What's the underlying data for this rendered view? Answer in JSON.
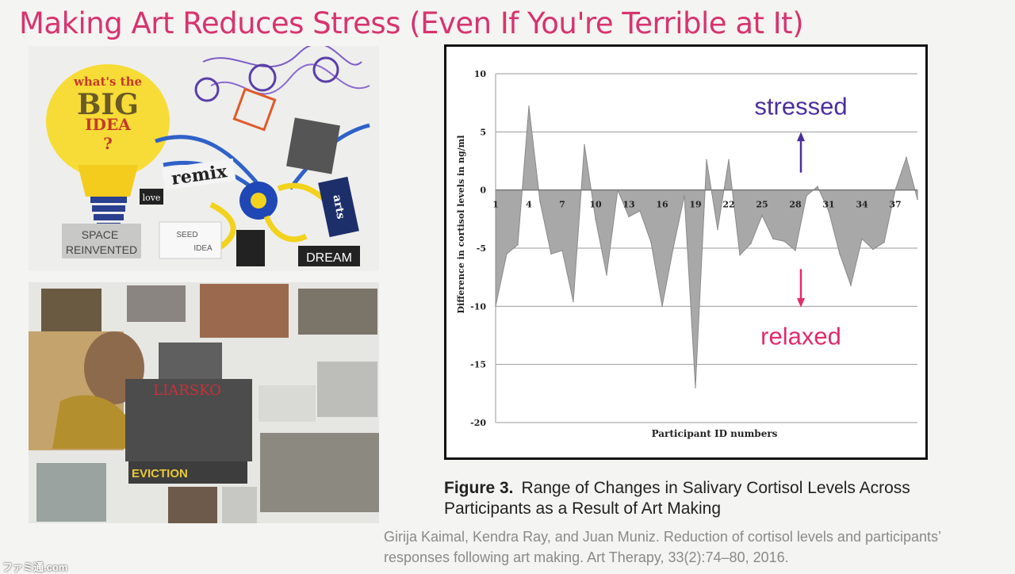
{
  "slide": {
    "title": "Making Art Reduces Stress (Even If You're Terrible at It)"
  },
  "artwork_top": {
    "bulb_text": [
      "what's the",
      "BIG",
      "IDEA",
      "?"
    ],
    "remix": "remix",
    "love": "love",
    "space_reinvented": [
      "SPACE",
      "REINVENTED"
    ],
    "seed": "SEED",
    "idea": "IDEA",
    "dream": "DREAM",
    "arts": "arts"
  },
  "artwork_bottom": {
    "eviction": "EVICTION"
  },
  "chart_data": {
    "type": "area",
    "title": "",
    "xlabel": "Participant ID numbers",
    "ylabel": "Difference in cortisol levels in ng/ml",
    "xlim": [
      1,
      39
    ],
    "ylim": [
      -20,
      10
    ],
    "y_ticks": [
      10,
      5,
      0,
      -5,
      -10,
      -15,
      -20
    ],
    "x_ticks": [
      1,
      4,
      7,
      10,
      13,
      16,
      19,
      22,
      25,
      28,
      31,
      34,
      37
    ],
    "grid": true,
    "annotations": [
      "stressed",
      "relaxed"
    ],
    "x": [
      1,
      2,
      3,
      4,
      5,
      6,
      7,
      8,
      9,
      10,
      11,
      12,
      13,
      14,
      15,
      16,
      17,
      18,
      19,
      20,
      21,
      22,
      23,
      24,
      25,
      26,
      27,
      28,
      29,
      30,
      31,
      32,
      33,
      34,
      35,
      36,
      37,
      38,
      39
    ],
    "y": [
      -10,
      -5.5,
      -4.7,
      7.2,
      -1,
      -5.5,
      -5.2,
      -9.6,
      3.9,
      -2.5,
      -7.3,
      0,
      -2.3,
      -1.8,
      -4.5,
      -10,
      -5,
      -0.5,
      -17,
      2.6,
      -3.4,
      2.6,
      -5.6,
      -4.6,
      -2.2,
      -4.2,
      -4.4,
      -5.2,
      -0.5,
      0.3,
      -1.8,
      -5.5,
      -8.2,
      -4.2,
      -5.1,
      -4.5,
      0,
      2.8,
      -0.8
    ]
  },
  "annotation_colors": {
    "stressed": "#4b2e9e",
    "relaxed": "#e22c68"
  },
  "figure": {
    "label": "Figure 3.",
    "caption": "Range of Changes in Salivary Cortisol Levels Across Participants as a Result of Art Making"
  },
  "citation": "Girija Kaimal, Kendra Ray, and Juan Muniz. Reduction of cortisol levels and participants’ responses following art making. Art Therapy, 33(2):74–80, 2016.",
  "watermark": "ファミ通.com"
}
